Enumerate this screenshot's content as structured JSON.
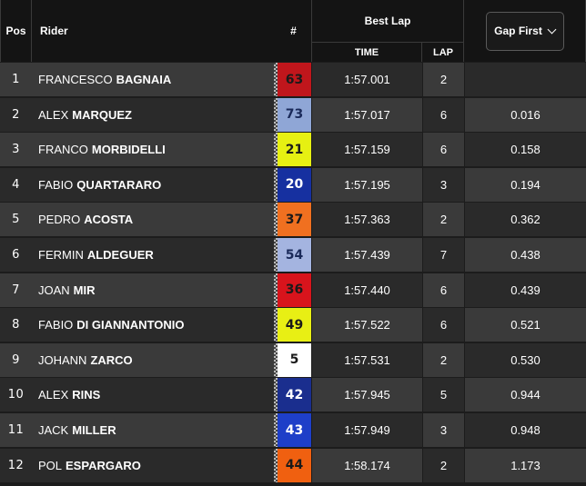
{
  "header": {
    "pos": "Pos",
    "rider": "Rider",
    "number": "#",
    "best_lap": "Best Lap",
    "time": "TIME",
    "lap": "LAP",
    "gap_first": "Gap First"
  },
  "colors": {
    "row_light": "#3a3a3a",
    "row_dark": "#2a2a2a",
    "header_bg": "#141414"
  },
  "rows": [
    {
      "pos": "1",
      "first": "FRANCESCO",
      "last": "BAGNAIA",
      "number": "63",
      "num_bg": "#c0161c",
      "num_fg": "#1a1a1a",
      "time": "1:57.001",
      "lap": "2",
      "gap": ""
    },
    {
      "pos": "2",
      "first": "ALEX",
      "last": "MARQUEZ",
      "number": "73",
      "num_bg": "#8fa6d6",
      "num_fg": "#1a2a5a",
      "time": "1:57.017",
      "lap": "6",
      "gap": "0.016"
    },
    {
      "pos": "3",
      "first": "FRANCO",
      "last": "MORBIDELLI",
      "number": "21",
      "num_bg": "#e6f012",
      "num_fg": "#1a1a1a",
      "time": "1:57.159",
      "lap": "6",
      "gap": "0.158"
    },
    {
      "pos": "4",
      "first": "FABIO",
      "last": "QUARTARARO",
      "number": "20",
      "num_bg": "#1630a0",
      "num_fg": "#ffffff",
      "time": "1:57.195",
      "lap": "3",
      "gap": "0.194"
    },
    {
      "pos": "5",
      "first": "PEDRO",
      "last": "ACOSTA",
      "number": "37",
      "num_bg": "#f07020",
      "num_fg": "#1a1a1a",
      "time": "1:57.363",
      "lap": "2",
      "gap": "0.362"
    },
    {
      "pos": "6",
      "first": "FERMIN",
      "last": "ALDEGUER",
      "number": "54",
      "num_bg": "#a4b4e0",
      "num_fg": "#1a2a5a",
      "time": "1:57.439",
      "lap": "7",
      "gap": "0.438"
    },
    {
      "pos": "7",
      "first": "JOAN",
      "last": "MIR",
      "number": "36",
      "num_bg": "#d8141c",
      "num_fg": "#1a1a1a",
      "time": "1:57.440",
      "lap": "6",
      "gap": "0.439"
    },
    {
      "pos": "8",
      "first": "FABIO",
      "last": "DI GIANNANTONIO",
      "number": "49",
      "num_bg": "#e8ef14",
      "num_fg": "#1a1a1a",
      "time": "1:57.522",
      "lap": "6",
      "gap": "0.521"
    },
    {
      "pos": "9",
      "first": "JOHANN",
      "last": "ZARCO",
      "number": "5",
      "num_bg": "#ffffff",
      "num_fg": "#1a1a1a",
      "time": "1:57.531",
      "lap": "2",
      "gap": "0.530"
    },
    {
      "pos": "10",
      "first": "ALEX",
      "last": "RINS",
      "number": "42",
      "num_bg": "#1a2e8e",
      "num_fg": "#ffffff",
      "time": "1:57.945",
      "lap": "5",
      "gap": "0.944"
    },
    {
      "pos": "11",
      "first": "JACK",
      "last": "MILLER",
      "number": "43",
      "num_bg": "#1e3fc8",
      "num_fg": "#ffffff",
      "time": "1:57.949",
      "lap": "3",
      "gap": "0.948"
    },
    {
      "pos": "12",
      "first": "POL",
      "last": "ESPARGARO",
      "number": "44",
      "num_bg": "#f06010",
      "num_fg": "#1a1a1a",
      "time": "1:58.174",
      "lap": "2",
      "gap": "1.173"
    }
  ]
}
